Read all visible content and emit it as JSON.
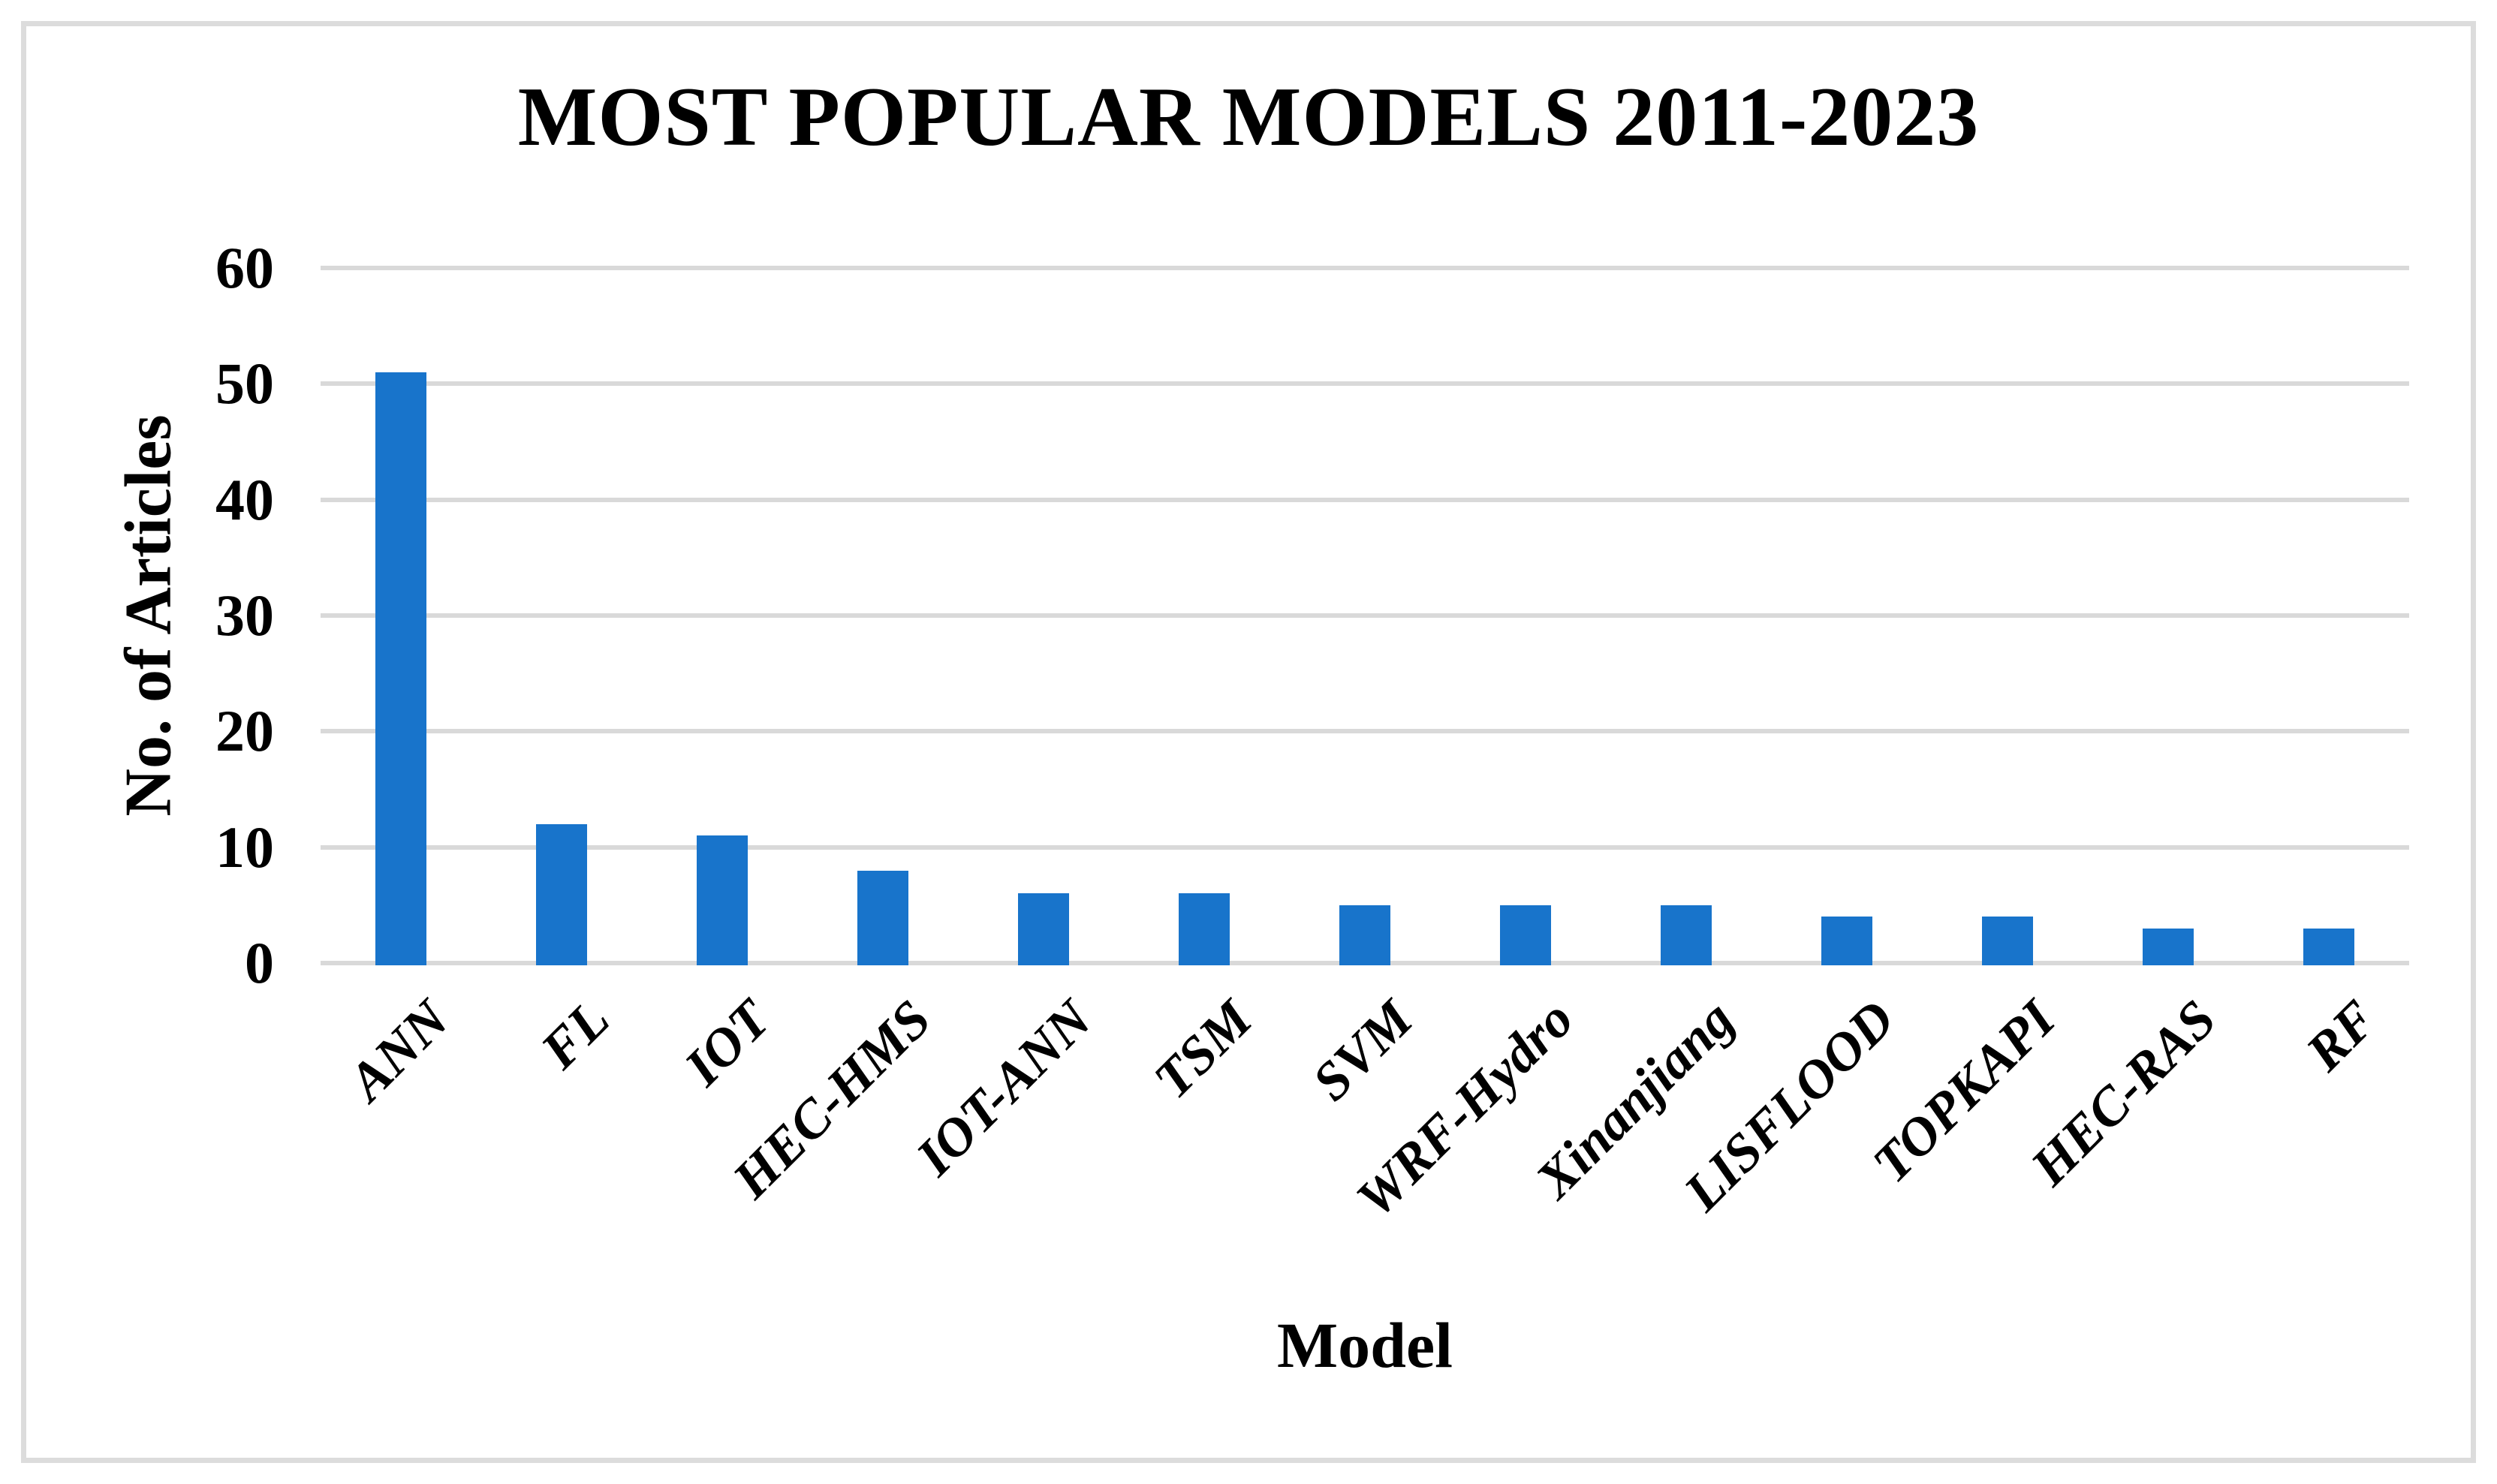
{
  "figure": {
    "title": "MOST POPULAR MODELS 2011-2023",
    "x_axis_title": "Model",
    "y_axis_title": "No. of Articles"
  },
  "colors": {
    "bar": "#1874cb",
    "gridline": "#d9d9d9",
    "frame_border": "#dcdcdc",
    "text": "#000000",
    "background": "#ffffff"
  },
  "chart_data": {
    "type": "bar",
    "title": "MOST POPULAR MODELS 2011-2023",
    "xlabel": "Model",
    "ylabel": "No. of Articles",
    "categories": [
      "ANN",
      "FL",
      "IOT",
      "HEC-HMS",
      "IOT-ANN",
      "TSM",
      "SVM",
      "WRF-Hydro",
      "Xinanjiang",
      "LISFLOOD",
      "TOPKAPI",
      "HEC-RAS",
      "RF"
    ],
    "values": [
      51,
      12,
      11,
      8,
      6,
      6,
      5,
      5,
      5,
      4,
      4,
      3,
      3
    ],
    "ylim": [
      0,
      60
    ],
    "ytick_step": 10,
    "ytick_labels": [
      "0",
      "10",
      "20",
      "30",
      "40",
      "50",
      "60"
    ],
    "grid": "horizontal",
    "legend": "none",
    "bar_orientation": "vertical",
    "category_label_rotation_deg": 45
  }
}
